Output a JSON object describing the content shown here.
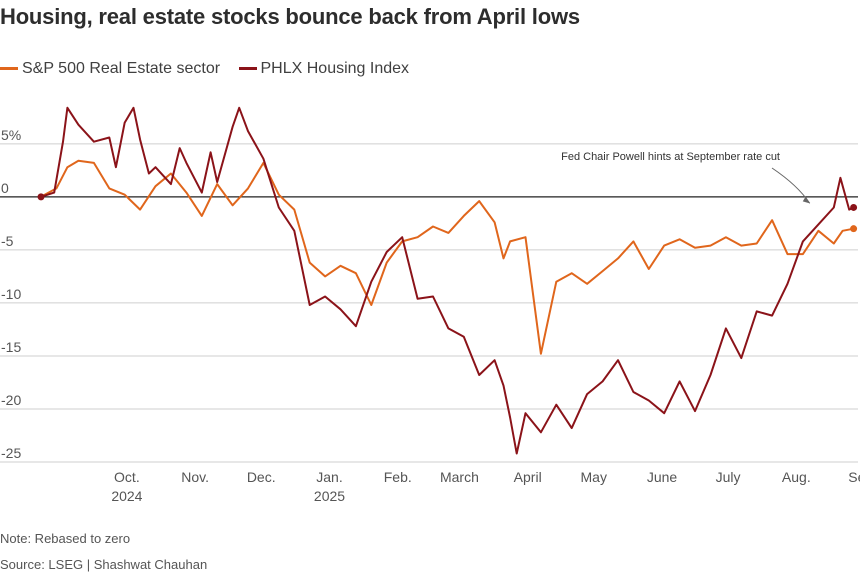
{
  "chart_data": {
    "type": "line",
    "title": "Housing, real estate stocks bounce back from April lows",
    "y_ticks": [
      {
        "value": 5,
        "label": "5%"
      },
      {
        "value": 0,
        "label": "0"
      },
      {
        "value": -5,
        "label": "-5"
      },
      {
        "value": -10,
        "label": "-10"
      },
      {
        "value": -15,
        "label": "-15"
      },
      {
        "value": -20,
        "label": "-20"
      },
      {
        "value": -25,
        "label": "-25"
      }
    ],
    "ylim": [
      -25,
      8
    ],
    "x_range": [
      "2024-09-01",
      "2025-09-12"
    ],
    "x_ticks": [
      {
        "date": "2024-10-15",
        "label": "Oct.",
        "sublabel": "2024"
      },
      {
        "date": "2024-11-15",
        "label": "Nov.",
        "sublabel": ""
      },
      {
        "date": "2024-12-15",
        "label": "Dec.",
        "sublabel": ""
      },
      {
        "date": "2025-01-15",
        "label": "Jan.",
        "sublabel": "2025"
      },
      {
        "date": "2025-02-15",
        "label": "Feb.",
        "sublabel": ""
      },
      {
        "date": "2025-03-15",
        "label": "March",
        "sublabel": ""
      },
      {
        "date": "2025-04-15",
        "label": "April",
        "sublabel": ""
      },
      {
        "date": "2025-05-15",
        "label": "May",
        "sublabel": ""
      },
      {
        "date": "2025-06-15",
        "label": "June",
        "sublabel": ""
      },
      {
        "date": "2025-07-15",
        "label": "July",
        "sublabel": ""
      },
      {
        "date": "2025-08-15",
        "label": "Aug.",
        "sublabel": ""
      },
      {
        "date": "2025-09-15",
        "label": "Sept.",
        "sublabel": ""
      }
    ],
    "series": [
      {
        "name": "S&P 500 Real Estate sector",
        "color": "#e0661c",
        "points": [
          [
            "2024-09-06",
            0.0
          ],
          [
            "2024-09-13",
            0.8
          ],
          [
            "2024-09-18",
            2.8
          ],
          [
            "2024-09-23",
            3.4
          ],
          [
            "2024-09-30",
            3.2
          ],
          [
            "2024-10-07",
            0.8
          ],
          [
            "2024-10-14",
            0.2
          ],
          [
            "2024-10-21",
            -1.2
          ],
          [
            "2024-10-28",
            1.0
          ],
          [
            "2024-11-04",
            2.2
          ],
          [
            "2024-11-11",
            0.4
          ],
          [
            "2024-11-18",
            -1.8
          ],
          [
            "2024-11-25",
            1.2
          ],
          [
            "2024-12-02",
            -0.8
          ],
          [
            "2024-12-09",
            0.8
          ],
          [
            "2024-12-16",
            3.2
          ],
          [
            "2024-12-23",
            0.2
          ],
          [
            "2024-12-30",
            -1.2
          ],
          [
            "2025-01-06",
            -6.2
          ],
          [
            "2025-01-13",
            -7.5
          ],
          [
            "2025-01-20",
            -6.5
          ],
          [
            "2025-01-27",
            -7.2
          ],
          [
            "2025-02-03",
            -10.2
          ],
          [
            "2025-02-10",
            -6.2
          ],
          [
            "2025-02-17",
            -4.2
          ],
          [
            "2025-02-24",
            -3.8
          ],
          [
            "2025-03-03",
            -2.8
          ],
          [
            "2025-03-10",
            -3.4
          ],
          [
            "2025-03-17",
            -1.8
          ],
          [
            "2025-03-24",
            -0.4
          ],
          [
            "2025-03-31",
            -2.4
          ],
          [
            "2025-04-04",
            -5.8
          ],
          [
            "2025-04-07",
            -4.2
          ],
          [
            "2025-04-14",
            -3.8
          ],
          [
            "2025-04-21",
            -14.8
          ],
          [
            "2025-04-28",
            -8.0
          ],
          [
            "2025-05-05",
            -7.2
          ],
          [
            "2025-05-12",
            -8.2
          ],
          [
            "2025-05-19",
            -7.0
          ],
          [
            "2025-05-26",
            -5.8
          ],
          [
            "2025-06-02",
            -4.2
          ],
          [
            "2025-06-09",
            -6.8
          ],
          [
            "2025-06-16",
            -4.6
          ],
          [
            "2025-06-23",
            -4.0
          ],
          [
            "2025-06-30",
            -4.8
          ],
          [
            "2025-07-07",
            -4.6
          ],
          [
            "2025-07-14",
            -3.8
          ],
          [
            "2025-07-21",
            -4.6
          ],
          [
            "2025-07-28",
            -4.4
          ],
          [
            "2025-08-04",
            -2.2
          ],
          [
            "2025-08-11",
            -5.4
          ],
          [
            "2025-08-18",
            -5.4
          ],
          [
            "2025-08-25",
            -3.2
          ],
          [
            "2025-09-01",
            -4.4
          ],
          [
            "2025-09-05",
            -3.2
          ],
          [
            "2025-09-10",
            -3.0
          ]
        ]
      },
      {
        "name": "PHLX Housing Index",
        "color": "#8b1319",
        "points": [
          [
            "2024-09-06",
            0.0
          ],
          [
            "2024-09-12",
            0.4
          ],
          [
            "2024-09-16",
            5.2
          ],
          [
            "2024-09-18",
            8.4
          ],
          [
            "2024-09-23",
            6.8
          ],
          [
            "2024-09-30",
            5.2
          ],
          [
            "2024-10-07",
            5.6
          ],
          [
            "2024-10-10",
            2.8
          ],
          [
            "2024-10-14",
            7.0
          ],
          [
            "2024-10-18",
            8.4
          ],
          [
            "2024-10-21",
            5.4
          ],
          [
            "2024-10-25",
            2.2
          ],
          [
            "2024-10-28",
            2.8
          ],
          [
            "2024-11-04",
            1.2
          ],
          [
            "2024-11-08",
            4.6
          ],
          [
            "2024-11-11",
            3.2
          ],
          [
            "2024-11-18",
            0.4
          ],
          [
            "2024-11-22",
            4.2
          ],
          [
            "2024-11-25",
            1.4
          ],
          [
            "2024-12-02",
            6.6
          ],
          [
            "2024-12-05",
            8.4
          ],
          [
            "2024-12-09",
            6.2
          ],
          [
            "2024-12-16",
            3.6
          ],
          [
            "2024-12-23",
            -1.0
          ],
          [
            "2024-12-30",
            -3.2
          ],
          [
            "2025-01-06",
            -10.2
          ],
          [
            "2025-01-13",
            -9.4
          ],
          [
            "2025-01-20",
            -10.6
          ],
          [
            "2025-01-27",
            -12.2
          ],
          [
            "2025-02-03",
            -8.0
          ],
          [
            "2025-02-10",
            -5.2
          ],
          [
            "2025-02-17",
            -3.8
          ],
          [
            "2025-02-24",
            -9.6
          ],
          [
            "2025-03-03",
            -9.4
          ],
          [
            "2025-03-10",
            -12.4
          ],
          [
            "2025-03-17",
            -13.2
          ],
          [
            "2025-03-24",
            -16.8
          ],
          [
            "2025-03-31",
            -15.4
          ],
          [
            "2025-04-04",
            -17.8
          ],
          [
            "2025-04-07",
            -20.8
          ],
          [
            "2025-04-10",
            -24.2
          ],
          [
            "2025-04-14",
            -20.4
          ],
          [
            "2025-04-21",
            -22.2
          ],
          [
            "2025-04-28",
            -19.6
          ],
          [
            "2025-05-05",
            -21.8
          ],
          [
            "2025-05-12",
            -18.6
          ],
          [
            "2025-05-19",
            -17.4
          ],
          [
            "2025-05-26",
            -15.4
          ],
          [
            "2025-06-02",
            -18.4
          ],
          [
            "2025-06-09",
            -19.2
          ],
          [
            "2025-06-16",
            -20.4
          ],
          [
            "2025-06-23",
            -17.4
          ],
          [
            "2025-06-30",
            -20.2
          ],
          [
            "2025-07-07",
            -16.8
          ],
          [
            "2025-07-14",
            -12.4
          ],
          [
            "2025-07-21",
            -15.2
          ],
          [
            "2025-07-28",
            -10.8
          ],
          [
            "2025-08-04",
            -11.2
          ],
          [
            "2025-08-11",
            -8.2
          ],
          [
            "2025-08-18",
            -4.2
          ],
          [
            "2025-08-25",
            -2.6
          ],
          [
            "2025-09-01",
            -1.0
          ],
          [
            "2025-09-04",
            1.8
          ],
          [
            "2025-09-08",
            -1.2
          ],
          [
            "2025-09-10",
            -1.0
          ]
        ]
      }
    ],
    "annotation": {
      "text": "Fed Chair Powell hints at September rate cut",
      "date": "2025-08-22",
      "value": -0.8
    },
    "grid": "horizontal",
    "legend_position": "top-left"
  },
  "footer": {
    "note": "Note: Rebased to zero",
    "source": "Source: LSEG | Shashwat Chauhan"
  }
}
